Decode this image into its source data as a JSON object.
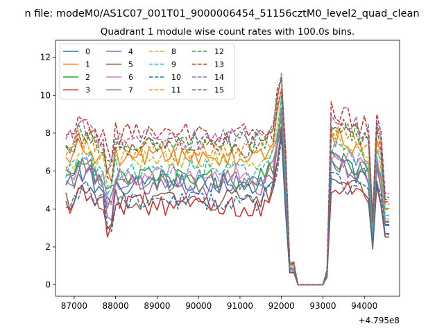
{
  "chart_data": {
    "type": "line",
    "suptitle": "n file: modeM0/AS1C07_001T01_9000006454_51156cztM0_level2_quad_clean",
    "title": "Quadrant 1 module wise count rates with 100.0s bins.",
    "xlabel": "",
    "ylabel": "",
    "x_offset_label": "+4.795e8",
    "xlim": [
      86550,
      94850
    ],
    "ylim": [
      -0.6,
      12.9
    ],
    "x_ticks": [
      87000,
      88000,
      89000,
      90000,
      91000,
      92000,
      93000,
      94000
    ],
    "y_ticks": [
      0,
      2,
      4,
      6,
      8,
      10,
      12
    ],
    "grid": false,
    "legend": {
      "placement": "top-left",
      "columns": 4
    },
    "x": {
      "start": 86800,
      "step": 100,
      "count": 79
    },
    "gap": {
      "drop_start": 92100,
      "zero_from": 92300,
      "zero_to": 93000,
      "rise_end": 93100
    },
    "series": [
      {
        "name": "0",
        "color": "#1f77b4",
        "dashed": false,
        "level": 5.3,
        "spread": 0.28,
        "seed": 1
      },
      {
        "name": "1",
        "color": "#ff7f0e",
        "dashed": false,
        "level": 6.7,
        "spread": 0.28,
        "seed": 2
      },
      {
        "name": "2",
        "color": "#2ca02c",
        "dashed": false,
        "level": 5.6,
        "spread": 0.3,
        "seed": 3
      },
      {
        "name": "3",
        "color": "#d62728",
        "dashed": false,
        "level": 4.2,
        "spread": 0.3,
        "seed": 4
      },
      {
        "name": "4",
        "color": "#9467bd",
        "dashed": false,
        "level": 5.2,
        "spread": 0.28,
        "seed": 5
      },
      {
        "name": "5",
        "color": "#8c564b",
        "dashed": false,
        "level": 4.5,
        "spread": 0.28,
        "seed": 6
      },
      {
        "name": "6",
        "color": "#e377c2",
        "dashed": false,
        "level": 5.8,
        "spread": 0.28,
        "seed": 7
      },
      {
        "name": "7",
        "color": "#7f7f7f",
        "dashed": false,
        "level": 5.5,
        "spread": 0.3,
        "seed": 8
      },
      {
        "name": "8",
        "color": "#bcbd22",
        "dashed": true,
        "level": 6.6,
        "spread": 0.28,
        "seed": 9
      },
      {
        "name": "9",
        "color": "#17becf",
        "dashed": true,
        "level": 6.1,
        "spread": 0.28,
        "seed": 10
      },
      {
        "name": "10",
        "color": "#1f77b4",
        "dashed": true,
        "level": 4.4,
        "spread": 0.25,
        "seed": 11
      },
      {
        "name": "11",
        "color": "#ff7f0e",
        "dashed": true,
        "level": 7.1,
        "spread": 0.28,
        "seed": 12
      },
      {
        "name": "12",
        "color": "#2ca02c",
        "dashed": true,
        "level": 7.5,
        "spread": 0.3,
        "seed": 13
      },
      {
        "name": "13",
        "color": "#d62728",
        "dashed": true,
        "level": 8.0,
        "spread": 0.3,
        "seed": 14
      },
      {
        "name": "14",
        "color": "#9467bd",
        "dashed": true,
        "level": 7.7,
        "spread": 0.3,
        "seed": 15
      },
      {
        "name": "15",
        "color": "#8c564b",
        "dashed": true,
        "level": 7.3,
        "spread": 0.3,
        "seed": 16
      }
    ]
  }
}
